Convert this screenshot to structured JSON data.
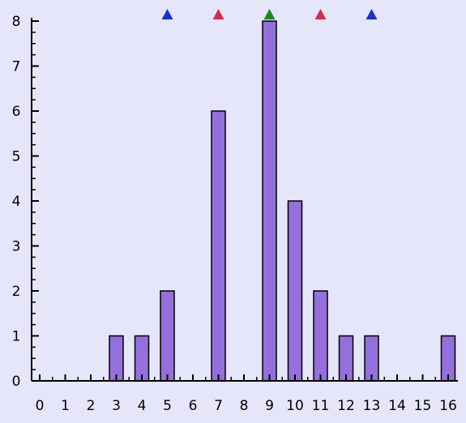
{
  "chart_data": {
    "type": "bar",
    "x_ticks": [
      "0",
      "1",
      "2",
      "3",
      "4",
      "5",
      "6",
      "7",
      "8",
      "9",
      "10",
      "11",
      "12",
      "13",
      "14",
      "15",
      "16"
    ],
    "y_ticks": [
      "0",
      "1",
      "2",
      "3",
      "4",
      "5",
      "6",
      "7",
      "8"
    ],
    "xlim": [
      0,
      16
    ],
    "ylim": [
      0,
      8
    ],
    "bars": [
      {
        "x": 3,
        "y": 1
      },
      {
        "x": 4,
        "y": 1
      },
      {
        "x": 5,
        "y": 2
      },
      {
        "x": 7,
        "y": 6
      },
      {
        "x": 9,
        "y": 8
      },
      {
        "x": 10,
        "y": 4
      },
      {
        "x": 11,
        "y": 2
      },
      {
        "x": 12,
        "y": 1
      },
      {
        "x": 13,
        "y": 1
      },
      {
        "x": 16,
        "y": 1
      }
    ],
    "markers": [
      {
        "x": 5,
        "color": "#1a2fd6"
      },
      {
        "x": 7,
        "color": "#d62b4a"
      },
      {
        "x": 9,
        "color": "#1a8a1a"
      },
      {
        "x": 11,
        "color": "#d62b4a"
      },
      {
        "x": 13,
        "color": "#1a2fd6"
      }
    ],
    "bar_color": "#9370db",
    "bar_edge_color": "#000000",
    "background_color": "#e6e6fa",
    "grid": false,
    "legend": "none"
  }
}
